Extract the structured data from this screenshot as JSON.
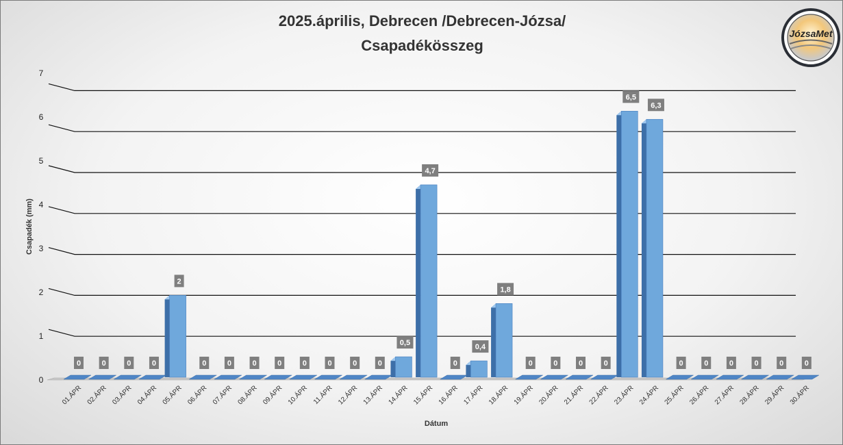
{
  "chart_data": {
    "type": "bar",
    "title_line1": "2025.április, Debrecen /Debrecen-Józsa/",
    "title_line2": "Csapadékösszeg",
    "xlabel": "Dátum",
    "ylabel": "Csapadék (mm)",
    "ylim": [
      0,
      7
    ],
    "yticks": [
      "0",
      "1",
      "2",
      "3",
      "4",
      "5",
      "6",
      "7"
    ],
    "grid": true,
    "categories": [
      "01.ÁPR",
      "02.ÁPR",
      "03.ÁPR",
      "04.ÁPR",
      "05.ÁPR",
      "06.ÁPR",
      "07.ÁPR",
      "08.ÁPR",
      "09.ÁPR",
      "10.ÁPR",
      "11.ÁPR",
      "12.ÁPR",
      "13.ÁPR",
      "14.ÁPR",
      "15.ÁPR",
      "16.ÁPR",
      "17.ÁPR",
      "18.ÁPR",
      "19.ÁPR",
      "20.ÁPR",
      "21.ÁPR",
      "22.ÁPR",
      "23.ÁPR",
      "24.ÁPR",
      "25.ÁPR",
      "26.ÁPR",
      "27.ÁPR",
      "28.ÁPR",
      "29.ÁPR",
      "30.ÁPR"
    ],
    "values": [
      0,
      0,
      0,
      0,
      2,
      0,
      0,
      0,
      0,
      0,
      0,
      0,
      0,
      0.5,
      4.7,
      0,
      0.4,
      1.8,
      0,
      0,
      0,
      0,
      6.5,
      6.3,
      0,
      0,
      0,
      0,
      0,
      0
    ],
    "data_labels": [
      "0",
      "0",
      "0",
      "0",
      "2",
      "0",
      "0",
      "0",
      "0",
      "0",
      "0",
      "0",
      "0",
      "0,5",
      "4,7",
      "0",
      "0,4",
      "1,8",
      "0",
      "0",
      "0",
      "0",
      "6,5",
      "6,3",
      "0",
      "0",
      "0",
      "0",
      "0",
      "0"
    ]
  },
  "logo": {
    "text": "JózsaMet"
  },
  "colors": {
    "bar_front": "#6fa8dc",
    "bar_side": "#3d6fa8",
    "bar_top": "#9fc8ef",
    "label_bg": "#7f7f7f",
    "grid": "#111111"
  }
}
